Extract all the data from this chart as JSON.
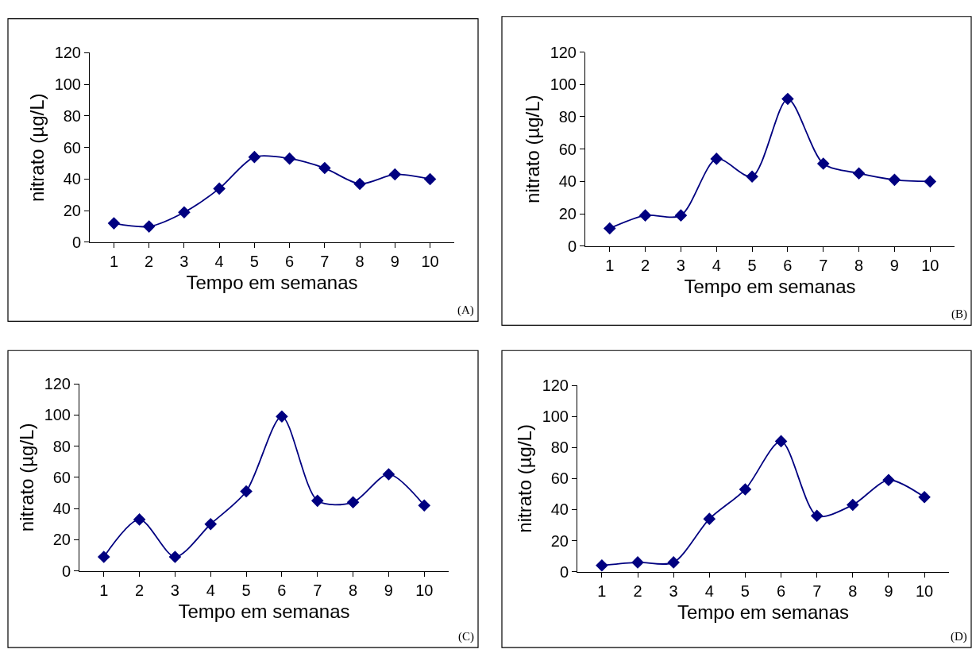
{
  "chart_data": [
    {
      "type": "line",
      "xlabel": "Tempo em semanas",
      "ylabel": "nitrato (µg/L)",
      "annotations": [
        "(A)"
      ],
      "categories": [
        "1",
        "2",
        "3",
        "4",
        "5",
        "6",
        "7",
        "8",
        "9",
        "10"
      ],
      "series": [
        {
          "color": "#000080",
          "values": [
            12,
            10,
            19,
            34,
            54,
            53,
            47,
            37,
            43,
            40
          ]
        }
      ],
      "ylim": [
        0,
        120
      ],
      "yticks": [
        0,
        20,
        40,
        60,
        80,
        100,
        120
      ],
      "marker": "diamond",
      "line_style": "solid"
    },
    {
      "type": "line",
      "xlabel": "Tempo em semanas",
      "ylabel": "nitrato (µg/L)",
      "annotations": [
        "(B)"
      ],
      "categories": [
        "1",
        "2",
        "3",
        "4",
        "5",
        "6",
        "7",
        "8",
        "9",
        "10"
      ],
      "series": [
        {
          "color": "#000080",
          "values": [
            11,
            19,
            19,
            54,
            43,
            91,
            51,
            45,
            41,
            40
          ]
        }
      ],
      "ylim": [
        0,
        120
      ],
      "yticks": [
        0,
        20,
        40,
        60,
        80,
        100,
        120
      ],
      "marker": "diamond",
      "line_style": "solid"
    },
    {
      "type": "line",
      "xlabel": "Tempo em semanas",
      "ylabel": "nitrato (µg/L)",
      "annotations": [
        "(C)"
      ],
      "categories": [
        "1",
        "2",
        "3",
        "4",
        "5",
        "6",
        "7",
        "8",
        "9",
        "10"
      ],
      "series": [
        {
          "color": "#000080",
          "values": [
            9,
            33,
            9,
            30,
            51,
            99,
            45,
            44,
            62,
            42
          ]
        }
      ],
      "ylim": [
        0,
        120
      ],
      "yticks": [
        0,
        20,
        40,
        60,
        80,
        100,
        120
      ],
      "marker": "diamond",
      "line_style": "solid"
    },
    {
      "type": "line",
      "xlabel": "Tempo em semanas",
      "ylabel": "nitrato (µg/L)",
      "annotations": [
        "(D)"
      ],
      "categories": [
        "1",
        "2",
        "3",
        "4",
        "5",
        "6",
        "7",
        "8",
        "9",
        "10"
      ],
      "series": [
        {
          "color": "#000080",
          "values": [
            4,
            6,
            6,
            34,
            53,
            84,
            36,
            43,
            59,
            48
          ]
        }
      ],
      "ylim": [
        0,
        120
      ],
      "yticks": [
        0,
        20,
        40,
        60,
        80,
        100,
        120
      ],
      "marker": "diamond",
      "line_style": "solid"
    }
  ]
}
